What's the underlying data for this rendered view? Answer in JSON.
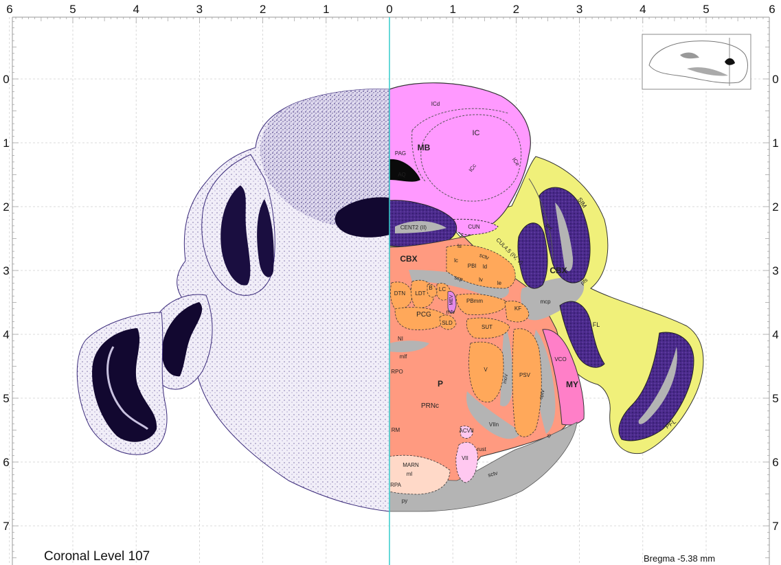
{
  "top_axis_labels": [
    "6",
    "5",
    "4",
    "3",
    "2",
    "1",
    "0",
    "1",
    "2",
    "3",
    "4",
    "5",
    "6"
  ],
  "side_axis_labels": [
    "0",
    "1",
    "2",
    "3",
    "4",
    "5",
    "6",
    "7"
  ],
  "caption": {
    "level": "Coronal Level 107",
    "bregma": "Bregma -5.38 mm"
  },
  "colors": {
    "midbrain": "#ff99ff",
    "cerebellum": "#f0f07a",
    "pons_nuclei": "#ffa85a",
    "pons": "#ff9a80",
    "medulla": "#ff7fc8",
    "fiber": "#b4b4b4",
    "granular": "#4b2a8c",
    "nissl": "#3a2a7a",
    "midline": "#33cccc"
  },
  "regions": [
    {
      "id": "ICd",
      "text": "ICd",
      "size": 8
    },
    {
      "id": "IC",
      "text": "IC",
      "size": 11
    },
    {
      "id": "MB",
      "text": "MB",
      "size": 12,
      "bold": true
    },
    {
      "id": "PAG",
      "text": "PAG",
      "size": 8
    },
    {
      "id": "ICc",
      "text": "ICc",
      "size": 8
    },
    {
      "id": "ICe",
      "text": "ICe",
      "size": 8
    },
    {
      "id": "AQ",
      "text": "AQ",
      "size": 8,
      "light": true
    },
    {
      "id": "CUN",
      "text": "CUN",
      "size": 8
    },
    {
      "id": "CENT2",
      "text": "CENT2 (II)",
      "size": 8,
      "light": true
    },
    {
      "id": "SIM",
      "text": "SIM",
      "size": 9
    },
    {
      "id": "prf",
      "text": "prf",
      "size": 8
    },
    {
      "id": "CUL45",
      "text": "CUL4,5 (IV, V)",
      "size": 8
    },
    {
      "id": "CBX_left",
      "text": "CBX",
      "size": 12,
      "bold": true
    },
    {
      "id": "CBX_right",
      "text": "CBX",
      "size": 12,
      "bold": true
    },
    {
      "id": "pfs",
      "text": "pfs",
      "size": 8
    },
    {
      "id": "ls",
      "text": "ls",
      "size": 8
    },
    {
      "id": "sctv_top",
      "text": "sctv",
      "size": 8
    },
    {
      "id": "lc",
      "text": "lc",
      "size": 8
    },
    {
      "id": "PBl",
      "text": "PBl",
      "size": 8
    },
    {
      "id": "ld",
      "text": "ld",
      "size": 8
    },
    {
      "id": "scp",
      "text": "scp",
      "size": 8
    },
    {
      "id": "lv",
      "text": "lv",
      "size": 8
    },
    {
      "id": "le",
      "text": "le",
      "size": 8
    },
    {
      "id": "mcp",
      "text": "mcp",
      "size": 8
    },
    {
      "id": "DTN",
      "text": "DTN",
      "size": 8
    },
    {
      "id": "LDT",
      "text": "LDT",
      "size": 8
    },
    {
      "id": "B",
      "text": "B",
      "size": 8
    },
    {
      "id": "LC",
      "text": "LC",
      "size": 8
    },
    {
      "id": "MEV",
      "text": "MEV",
      "size": 7
    },
    {
      "id": "PBmm",
      "text": "PBmm",
      "size": 8
    },
    {
      "id": "mtv",
      "text": "mtv",
      "size": 8
    },
    {
      "id": "KF",
      "text": "KF",
      "size": 8
    },
    {
      "id": "PCG",
      "text": "PCG",
      "size": 10
    },
    {
      "id": "SLD",
      "text": "SLD",
      "size": 8
    },
    {
      "id": "SUT",
      "text": "SUT",
      "size": 8
    },
    {
      "id": "FL",
      "text": "FL",
      "size": 9
    },
    {
      "id": "NI",
      "text": "NI",
      "size": 8
    },
    {
      "id": "mlf",
      "text": "mlf",
      "size": 8
    },
    {
      "id": "VCO",
      "text": "VCO",
      "size": 8
    },
    {
      "id": "RPO",
      "text": "RPO",
      "size": 8
    },
    {
      "id": "V",
      "text": "V",
      "size": 8
    },
    {
      "id": "P",
      "text": "P",
      "size": 12,
      "bold": true
    },
    {
      "id": "moV",
      "text": "moV",
      "size": 7
    },
    {
      "id": "PSV",
      "text": "PSV",
      "size": 8
    },
    {
      "id": "MY",
      "text": "MY",
      "size": 12,
      "bold": true
    },
    {
      "id": "sptV",
      "text": "sptV",
      "size": 7
    },
    {
      "id": "PRNc",
      "text": "PRNc",
      "size": 10
    },
    {
      "id": "VIIn",
      "text": "VIIn",
      "size": 8
    },
    {
      "id": "RM",
      "text": "RM",
      "size": 8
    },
    {
      "id": "ACVII",
      "text": "ACVII",
      "size": 8
    },
    {
      "id": "tb",
      "text": "tb",
      "size": 7
    },
    {
      "id": "PFL",
      "text": "PFL",
      "size": 9
    },
    {
      "id": "rust",
      "text": "rust",
      "size": 8
    },
    {
      "id": "VII",
      "text": "VII",
      "size": 8
    },
    {
      "id": "MARN",
      "text": "MARN",
      "size": 8
    },
    {
      "id": "ml",
      "text": "ml",
      "size": 8
    },
    {
      "id": "RPA",
      "text": "RPA",
      "size": 8
    },
    {
      "id": "sctv_bottom",
      "text": "sctv",
      "size": 8
    },
    {
      "id": "py",
      "text": "py",
      "size": 8
    }
  ]
}
